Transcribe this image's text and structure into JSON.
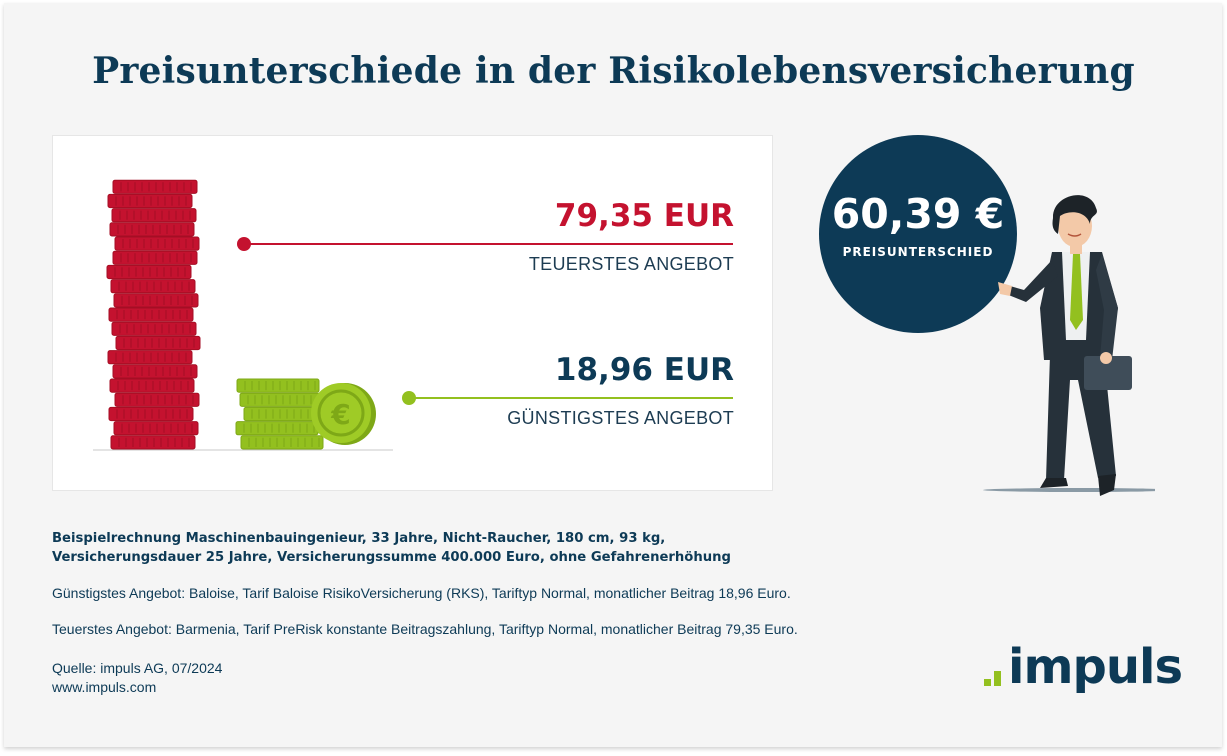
{
  "title": "Preisunterschiede in der Risikolebensversicherung",
  "colors": {
    "navy": "#0d3a56",
    "red": "#c4122f",
    "green": "#93c01f",
    "background": "#f5f5f5"
  },
  "chart_data": {
    "type": "bar",
    "categories": [
      "TEUERSTES ANGEBOT",
      "GÜNSTIGSTES ANGEBOT"
    ],
    "values": [
      79.35,
      18.96
    ],
    "value_labels": [
      "79,35 EUR",
      "18,96 EUR"
    ],
    "colors": [
      "#c4122f",
      "#93c01f"
    ],
    "difference_label": "60,39 €",
    "difference_caption": "PREISUNTERSCHIED"
  },
  "notes": {
    "example_line1": "Beispielrechnung Maschinenbauingenieur, 33 Jahre, Nicht-Raucher, 180 cm, 93 kg,",
    "example_line2": "Versicherungsdauer 25 Jahre, Versicherungssumme 400.000 Euro, ohne Gefahrenerhöhung",
    "cheapest": "Günstigstes Angebot: Baloise, Tarif Baloise RisikoVersicherung (RKS), Tariftyp Normal, monatlicher Beitrag 18,96 Euro.",
    "most_expensive": "Teuerstes Angebot: Barmenia, Tarif PreRisk konstante Beitragszahlung, Tariftyp Normal, monatlicher Beitrag 79,35 Euro.",
    "source": "Quelle: impuls AG, 07/2024",
    "website": "www.impuls.com"
  },
  "logo": {
    "text": "impuls"
  },
  "icons": {
    "euro_coin": "euro-coin-icon",
    "businessman": "businessman-illustration"
  }
}
